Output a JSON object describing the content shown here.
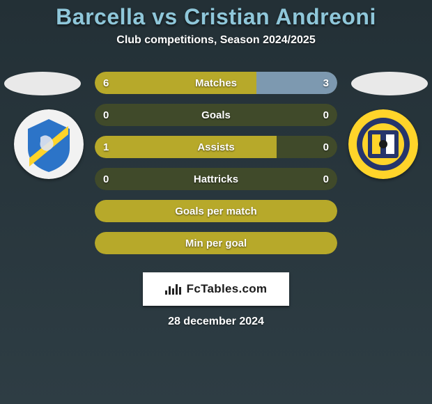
{
  "colors": {
    "bg_top": "#233036",
    "bg_bottom": "#2e3d44",
    "title": "#8fc7da",
    "text": "#ffffff",
    "oval": "#e9e9e9",
    "track": "#404a2a",
    "left_fill": "#b7a92a",
    "right_fill": "#7d99b0",
    "footer_bg": "#ffffff",
    "footer_text": "#1a1a1a"
  },
  "title": "Barcella vs Cristian Andreoni",
  "subtitle": "Club competitions, Season 2024/2025",
  "date_line": "28 december 2024",
  "footer_brand": "FcTables.com",
  "bar_style": {
    "height": 32,
    "gap": 14,
    "radius": 16,
    "label_fontsize": 15,
    "value_fontsize": 15,
    "total_width": 348
  },
  "club_left": {
    "bg": "#f2f2f2",
    "shield": "#2c74c8",
    "stripe": "#ffd42a"
  },
  "club_right": {
    "bg": "#ffd42a",
    "inner": "#26356b",
    "accent": "#ffffff"
  },
  "rows": [
    {
      "label": "Matches",
      "left_val": "6",
      "right_val": "3",
      "left_pct": 66.7,
      "right_pct": 33.3
    },
    {
      "label": "Goals",
      "left_val": "0",
      "right_val": "0",
      "left_pct": 0,
      "right_pct": 0
    },
    {
      "label": "Assists",
      "left_val": "1",
      "right_val": "0",
      "left_pct": 75,
      "right_pct": 0
    },
    {
      "label": "Hattricks",
      "left_val": "0",
      "right_val": "0",
      "left_pct": 0,
      "right_pct": 0
    },
    {
      "label": "Goals per match",
      "left_val": "",
      "right_val": "",
      "left_pct": 100,
      "right_pct": 0
    },
    {
      "label": "Min per goal",
      "left_val": "",
      "right_val": "",
      "left_pct": 100,
      "right_pct": 0
    }
  ]
}
